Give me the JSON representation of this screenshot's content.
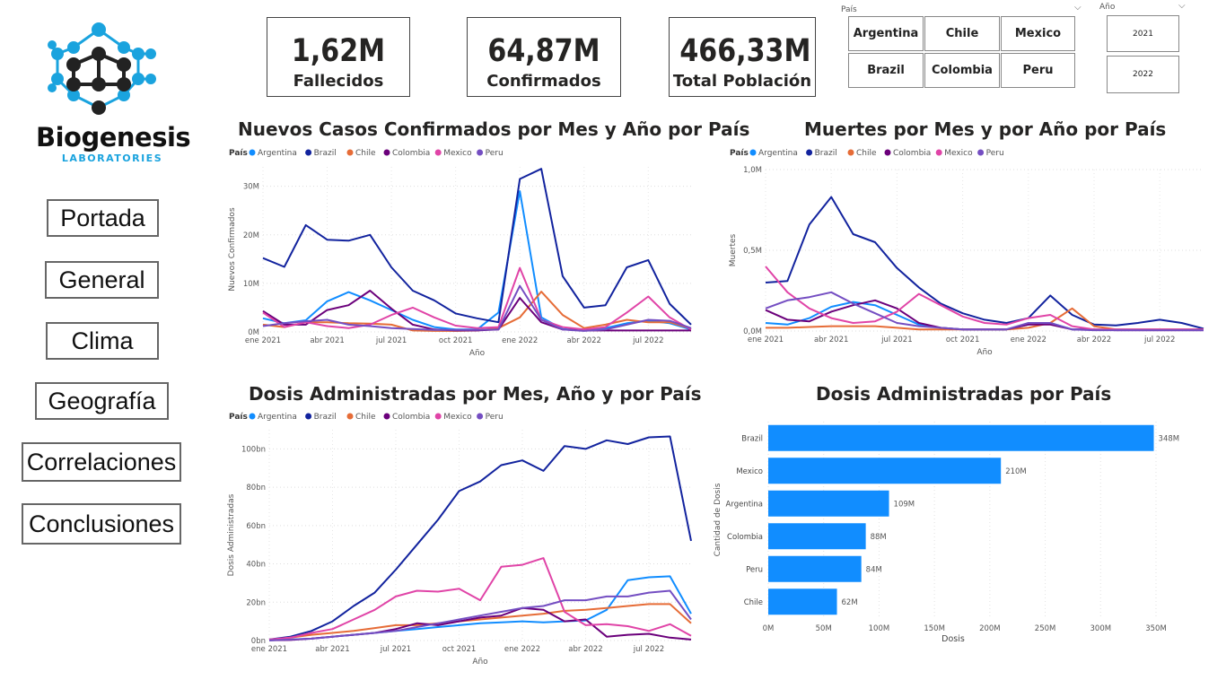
{
  "logo": {
    "name": "Biogenesis",
    "subtitle": "LABORATORIES"
  },
  "nav": {
    "items": [
      "Portada",
      "General",
      "Clima",
      "Geografía",
      "Correlaciones",
      "Conclusiones"
    ]
  },
  "cards": [
    {
      "value": "1,62M",
      "label": "Fallecidos"
    },
    {
      "value": "64,87M",
      "label": "Confirmados"
    },
    {
      "value": "466,33M",
      "label": "Total Población"
    }
  ],
  "slicers": {
    "pais": {
      "title": "País",
      "options": [
        "Argentina",
        "Chile",
        "Mexico",
        "Brazil",
        "Colombia",
        "Peru"
      ]
    },
    "anio": {
      "title": "Año",
      "options": [
        "2021",
        "2022"
      ]
    }
  },
  "colors": {
    "Argentina": "#118DFF",
    "Brazil": "#12239E",
    "Chile": "#E66C37",
    "Colombia": "#6B007B",
    "Mexico": "#E044A7",
    "Peru": "#744EC2",
    "bar": "#118DFF"
  },
  "legend": {
    "title": "País",
    "entries": [
      "Argentina",
      "Brazil",
      "Chile",
      "Colombia",
      "Mexico",
      "Peru"
    ]
  },
  "chart_data": [
    {
      "type": "line",
      "title": "Nuevos Casos Confirmados por Mes y Año por País",
      "xlabel": "Año",
      "ylabel": "Nuevos Confirmados",
      "x": [
        "ene 2021",
        "feb 2021",
        "mar 2021",
        "abr 2021",
        "may 2021",
        "jun 2021",
        "jul 2021",
        "ago 2021",
        "sept 2021",
        "oct 2021",
        "nov 2021",
        "dic 2021",
        "ene 2022",
        "feb 2022",
        "mar 2022",
        "abr 2022",
        "may 2022",
        "jun 2022",
        "jul 2022",
        "ago 2022",
        "sept 2022"
      ],
      "xticks": [
        "ene 2021",
        "abr 2021",
        "jul 2021",
        "oct 2021",
        "ene 2022",
        "abr 2022",
        "jul 2022"
      ],
      "ylim": [
        0,
        34000000
      ],
      "yticks": [
        {
          "v": 0,
          "l": "0M"
        },
        {
          "v": 10000000,
          "l": "10M"
        },
        {
          "v": 20000000,
          "l": "20M"
        },
        {
          "v": 30000000,
          "l": "30M"
        }
      ],
      "series": [
        {
          "name": "Argentina",
          "values": [
            2.8,
            1.8,
            2.4,
            6.3,
            8.2,
            6.5,
            4.5,
            2.5,
            1.0,
            0.5,
            0.5,
            4.0,
            29.0,
            3.0,
            0.6,
            0.3,
            0.8,
            1.8,
            2.3,
            1.8,
            0.5
          ]
        },
        {
          "name": "Brazil",
          "values": [
            15.2,
            13.4,
            22.0,
            19.0,
            18.8,
            20.0,
            13.3,
            8.5,
            6.5,
            3.8,
            2.8,
            2.0,
            31.5,
            33.6,
            11.5,
            5.0,
            5.5,
            13.3,
            14.8,
            5.8,
            1.5
          ]
        },
        {
          "name": "Chile",
          "values": [
            1.5,
            1.0,
            2.0,
            2.0,
            1.8,
            1.7,
            1.5,
            0.3,
            0.2,
            0.2,
            0.3,
            0.8,
            3.0,
            8.3,
            3.5,
            0.8,
            1.5,
            2.5,
            2.0,
            2.0,
            0.7
          ]
        },
        {
          "name": "Colombia",
          "values": [
            4.3,
            1.5,
            1.5,
            4.5,
            5.5,
            8.5,
            4.8,
            1.5,
            0.5,
            0.3,
            0.3,
            0.5,
            7.0,
            2.0,
            0.5,
            0.3,
            0.3,
            0.3,
            0.3,
            0.3,
            0.3
          ]
        },
        {
          "name": "Mexico",
          "values": [
            4.0,
            1.0,
            2.0,
            1.2,
            0.8,
            1.5,
            3.5,
            5.0,
            3.0,
            1.3,
            0.8,
            1.0,
            13.2,
            2.5,
            1.0,
            0.5,
            1.0,
            4.0,
            7.3,
            3.0,
            0.5
          ]
        },
        {
          "name": "Peru",
          "values": [
            1.2,
            1.8,
            2.2,
            2.5,
            1.5,
            1.2,
            0.8,
            0.6,
            0.4,
            0.4,
            0.4,
            0.5,
            9.5,
            2.5,
            0.5,
            0.2,
            0.5,
            1.5,
            2.5,
            2.3,
            0.8
          ]
        }
      ],
      "value_scale": 1000000
    },
    {
      "type": "line",
      "title": "Muertes por Mes y por Año por País",
      "xlabel": "Año",
      "ylabel": "Muertes",
      "x": [
        "ene 2021",
        "feb 2021",
        "mar 2021",
        "abr 2021",
        "may 2021",
        "jun 2021",
        "jul 2021",
        "ago 2021",
        "sept 2021",
        "oct 2021",
        "nov 2021",
        "dic 2021",
        "ene 2022",
        "feb 2022",
        "mar 2022",
        "abr 2022",
        "may 2022",
        "jun 2022",
        "jul 2022",
        "ago 2022",
        "sept 2022"
      ],
      "xticks": [
        "ene 2021",
        "abr 2021",
        "jul 2021",
        "oct 2021",
        "ene 2022",
        "abr 2022",
        "jul 2022"
      ],
      "ylim": [
        0,
        1000000
      ],
      "yticks": [
        {
          "v": 0,
          "l": "0,0M"
        },
        {
          "v": 500000,
          "l": "0,5M"
        },
        {
          "v": 1000000,
          "l": "1,0M"
        }
      ],
      "series": [
        {
          "name": "Argentina",
          "values": [
            0.05,
            0.04,
            0.08,
            0.15,
            0.18,
            0.16,
            0.1,
            0.04,
            0.02,
            0.01,
            0.01,
            0.01,
            0.04,
            0.05,
            0.01,
            0.01,
            0.01,
            0.01,
            0.01,
            0.01,
            0.01
          ]
        },
        {
          "name": "Brazil",
          "values": [
            0.3,
            0.31,
            0.66,
            0.83,
            0.6,
            0.55,
            0.39,
            0.27,
            0.17,
            0.11,
            0.07,
            0.05,
            0.08,
            0.22,
            0.1,
            0.04,
            0.035,
            0.05,
            0.07,
            0.05,
            0.015
          ]
        },
        {
          "name": "Chile",
          "values": [
            0.02,
            0.02,
            0.025,
            0.03,
            0.03,
            0.03,
            0.02,
            0.01,
            0.01,
            0.01,
            0.01,
            0.01,
            0.02,
            0.05,
            0.14,
            0.03,
            0.01,
            0.01,
            0.01,
            0.01,
            0.01
          ]
        },
        {
          "name": "Colombia",
          "values": [
            0.13,
            0.07,
            0.06,
            0.12,
            0.16,
            0.19,
            0.14,
            0.05,
            0.02,
            0.01,
            0.01,
            0.01,
            0.04,
            0.04,
            0.01,
            0.01,
            0.005,
            0.005,
            0.005,
            0.005,
            0.005
          ]
        },
        {
          "name": "Mexico",
          "values": [
            0.4,
            0.24,
            0.14,
            0.08,
            0.05,
            0.06,
            0.12,
            0.23,
            0.16,
            0.09,
            0.05,
            0.04,
            0.08,
            0.1,
            0.03,
            0.01,
            0.01,
            0.01,
            0.01,
            0.01,
            0.01
          ]
        },
        {
          "name": "Peru",
          "values": [
            0.14,
            0.19,
            0.21,
            0.24,
            0.17,
            0.11,
            0.05,
            0.03,
            0.02,
            0.01,
            0.01,
            0.01,
            0.05,
            0.05,
            0.01,
            0.005,
            0.005,
            0.005,
            0.005,
            0.005,
            0.005
          ]
        }
      ],
      "value_scale": 1000000
    },
    {
      "type": "line",
      "title": "Dosis Administradas por Mes, Año y por País",
      "xlabel": "Año",
      "ylabel": "Dosis Administradas",
      "x": [
        "ene 2021",
        "feb 2021",
        "mar 2021",
        "abr 2021",
        "may 2021",
        "jun 2021",
        "jul 2021",
        "ago 2021",
        "sept 2021",
        "oct 2021",
        "nov 2021",
        "dic 2021",
        "ene 2022",
        "feb 2022",
        "mar 2022",
        "abr 2022",
        "may 2022",
        "jun 2022",
        "jul 2022",
        "ago 2022",
        "sept 2022"
      ],
      "xticks": [
        "ene 2021",
        "abr 2021",
        "jul 2021",
        "oct 2021",
        "ene 2022",
        "abr 2022",
        "jul 2022"
      ],
      "ylim": [
        0,
        110
      ],
      "yticks": [
        {
          "v": 0,
          "l": "0bn"
        },
        {
          "v": 20,
          "l": "20bn"
        },
        {
          "v": 40,
          "l": "40bn"
        },
        {
          "v": 60,
          "l": "60bn"
        },
        {
          "v": 80,
          "l": "80bn"
        },
        {
          "v": 100,
          "l": "100bn"
        }
      ],
      "series": [
        {
          "name": "Argentina",
          "values": [
            0.1,
            0.5,
            1.0,
            2.0,
            3.0,
            4.0,
            5.0,
            6.0,
            7.0,
            8.0,
            9.0,
            9.5,
            10.0,
            9.5,
            10.0,
            10.5,
            16.0,
            31.5,
            33.0,
            33.5,
            14.0
          ]
        },
        {
          "name": "Brazil",
          "values": [
            0.5,
            2.0,
            5.0,
            10.0,
            18.0,
            25.0,
            37.0,
            50.0,
            63.0,
            78.0,
            83.0,
            91.5,
            94.0,
            88.5,
            101.5,
            100.0,
            104.5,
            102.5,
            106.0,
            106.5,
            52.0
          ]
        },
        {
          "name": "Chile",
          "values": [
            0.3,
            1.5,
            3.0,
            4.0,
            5.0,
            6.5,
            8.0,
            8.0,
            9.0,
            10.0,
            11.0,
            12.0,
            13.0,
            14.0,
            15.5,
            16.0,
            17.0,
            18.0,
            19.0,
            19.0,
            9.0
          ]
        },
        {
          "name": "Colombia",
          "values": [
            0.1,
            0.3,
            1.0,
            2.0,
            3.0,
            4.0,
            6.0,
            9.0,
            8.0,
            10.0,
            12.0,
            13.0,
            17.0,
            16.0,
            10.0,
            11.0,
            2.0,
            3.0,
            3.5,
            1.5,
            0.5
          ]
        },
        {
          "name": "Mexico",
          "values": [
            0.5,
            1.5,
            4.0,
            6.0,
            11.0,
            16.0,
            23.0,
            26.0,
            25.5,
            27.0,
            21.0,
            38.5,
            39.5,
            43.0,
            15.0,
            8.0,
            8.5,
            7.5,
            5.0,
            8.5,
            2.5
          ]
        },
        {
          "name": "Peru",
          "values": [
            0.1,
            0.5,
            1.0,
            2.0,
            3.0,
            4.0,
            5.0,
            7.0,
            9.0,
            11.0,
            13.0,
            15.0,
            17.0,
            18.0,
            21.0,
            21.0,
            23.0,
            23.0,
            25.0,
            26.0,
            11.0
          ]
        }
      ],
      "value_scale": 1
    },
    {
      "type": "bar",
      "orientation": "horizontal",
      "title": "Dosis Administradas por País",
      "xlabel": "Dosis",
      "ylabel": "Cantidad de Dosis",
      "categories": [
        "Brazil",
        "Mexico",
        "Argentina",
        "Colombia",
        "Peru",
        "Chile"
      ],
      "values": [
        348,
        210,
        109,
        88,
        84,
        62
      ],
      "labels": [
        "348M",
        "210M",
        "109M",
        "88M",
        "84M",
        "62M"
      ],
      "xlim": [
        0,
        350
      ],
      "xticks": [
        {
          "v": 0,
          "l": "0M"
        },
        {
          "v": 50,
          "l": "50M"
        },
        {
          "v": 100,
          "l": "100M"
        },
        {
          "v": 150,
          "l": "150M"
        },
        {
          "v": 200,
          "l": "200M"
        },
        {
          "v": 250,
          "l": "250M"
        },
        {
          "v": 300,
          "l": "300M"
        },
        {
          "v": 350,
          "l": "350M"
        }
      ]
    }
  ]
}
